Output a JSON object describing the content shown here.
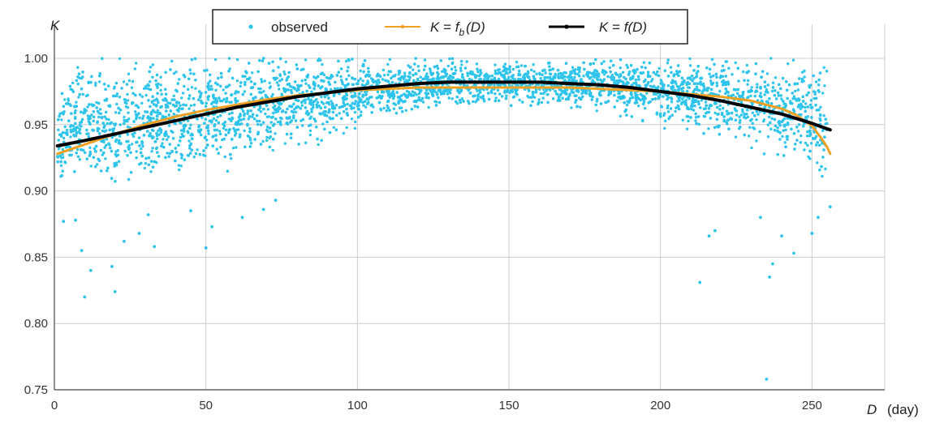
{
  "chart_data": {
    "type": "scatter",
    "title": "",
    "ylabel": "K",
    "xlabel_symbol": "D",
    "xlabel_unit": "(day)",
    "xlim": [
      0,
      275
    ],
    "ylim": [
      0.75,
      1.0
    ],
    "x_ticks": [
      0,
      50,
      100,
      150,
      200,
      250
    ],
    "y_ticks": [
      0.75,
      0.8,
      0.85,
      0.9,
      0.95,
      1.0
    ],
    "x_tick_labels": [
      "0",
      "50",
      "100",
      "150",
      "200",
      "250"
    ],
    "y_tick_labels": [
      "0.75",
      "0.80",
      "0.85",
      "0.90",
      "0.95",
      "1.00"
    ],
    "grid": true,
    "legend_position": "top-center",
    "legend": {
      "observed": "observed",
      "fb": {
        "lhs": "K",
        "eq": " = ",
        "f": "f",
        "sub": "b",
        "arg": "(D)"
      },
      "f": {
        "lhs": "K",
        "eq": " = ",
        "f": "f",
        "arg": "(D)"
      }
    },
    "colors": {
      "observed": "#2ec4ec",
      "fb": "#f0a020",
      "f": "#000000"
    },
    "series": [
      {
        "name": "observed",
        "kind": "scatter",
        "envelope": {
          "x": [
            1,
            10,
            25,
            50,
            75,
            100,
            125,
            150,
            175,
            200,
            225,
            245,
            255
          ],
          "center": [
            0.945,
            0.95,
            0.952,
            0.958,
            0.966,
            0.975,
            0.981,
            0.982,
            0.98,
            0.975,
            0.968,
            0.96,
            0.95
          ],
          "spread": [
            0.045,
            0.045,
            0.045,
            0.045,
            0.038,
            0.026,
            0.018,
            0.016,
            0.019,
            0.025,
            0.033,
            0.04,
            0.045
          ],
          "max": 1.0
        },
        "outliers": [
          [
            3,
            0.877
          ],
          [
            7,
            0.878
          ],
          [
            9,
            0.855
          ],
          [
            10,
            0.82
          ],
          [
            12,
            0.84
          ],
          [
            19,
            0.843
          ],
          [
            20,
            0.824
          ],
          [
            23,
            0.862
          ],
          [
            28,
            0.868
          ],
          [
            31,
            0.882
          ],
          [
            33,
            0.858
          ],
          [
            45,
            0.885
          ],
          [
            50,
            0.857
          ],
          [
            52,
            0.873
          ],
          [
            62,
            0.88
          ],
          [
            69,
            0.886
          ],
          [
            73,
            0.893
          ],
          [
            213,
            0.831
          ],
          [
            216,
            0.866
          ],
          [
            218,
            0.87
          ],
          [
            233,
            0.88
          ],
          [
            235,
            0.758
          ],
          [
            236,
            0.835
          ],
          [
            237,
            0.845
          ],
          [
            240,
            0.866
          ],
          [
            244,
            0.853
          ],
          [
            250,
            0.868
          ],
          [
            252,
            0.88
          ],
          [
            256,
            0.888
          ]
        ]
      },
      {
        "name": "K = f_b(D)",
        "kind": "line",
        "x": [
          1,
          10,
          20,
          30,
          40,
          50,
          60,
          70,
          80,
          90,
          100,
          110,
          120,
          130,
          140,
          150,
          160,
          170,
          180,
          190,
          200,
          210,
          220,
          230,
          240,
          245,
          250,
          253,
          255,
          256
        ],
        "y": [
          0.928,
          0.935,
          0.943,
          0.95,
          0.956,
          0.961,
          0.965,
          0.969,
          0.972,
          0.974,
          0.976,
          0.977,
          0.978,
          0.978,
          0.978,
          0.978,
          0.978,
          0.978,
          0.977,
          0.976,
          0.975,
          0.973,
          0.971,
          0.968,
          0.962,
          0.957,
          0.949,
          0.94,
          0.933,
          0.928
        ]
      },
      {
        "name": "K = f(D)",
        "kind": "line",
        "x": [
          1,
          10,
          20,
          30,
          40,
          50,
          60,
          70,
          80,
          90,
          100,
          110,
          120,
          130,
          140,
          150,
          160,
          170,
          180,
          190,
          200,
          210,
          220,
          230,
          240,
          250,
          256
        ],
        "y": [
          0.934,
          0.938,
          0.943,
          0.948,
          0.953,
          0.958,
          0.963,
          0.967,
          0.971,
          0.974,
          0.977,
          0.979,
          0.981,
          0.982,
          0.982,
          0.982,
          0.982,
          0.981,
          0.98,
          0.978,
          0.975,
          0.972,
          0.968,
          0.963,
          0.958,
          0.951,
          0.946
        ]
      }
    ]
  }
}
